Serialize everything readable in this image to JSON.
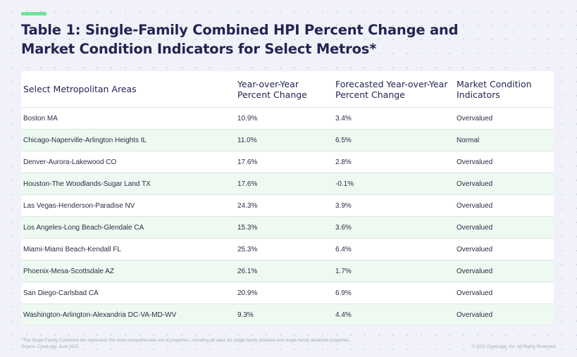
{
  "title": "Table 1: Single-Family Combined HPI Percent Change and Market Condition Indicators for Select Metros*",
  "colors": {
    "accent": "#6ee59b",
    "title": "#232552",
    "row_stripe": "#eefaf1",
    "background": "#f1f2f9"
  },
  "chart_data": {
    "type": "table",
    "title": "Table 1: Single-Family Combined HPI Percent Change and Market Condition Indicators for Select Metros*",
    "columns": [
      "Select Metropolitan Areas",
      "Year-over-Year Percent Change",
      "Forecasted Year-over-Year Percent Change",
      "Market Condition Indicators"
    ],
    "rows": [
      [
        "Boston MA",
        "10.9%",
        "3.4%",
        "Overvalued"
      ],
      [
        "Chicago-Naperville-Arlington Heights IL",
        "11.0%",
        "6.5%",
        "Normal"
      ],
      [
        "Denver-Aurora-Lakewood CO",
        "17.6%",
        "2.8%",
        "Overvalued"
      ],
      [
        "Houston-The Woodlands-Sugar Land TX",
        "17.6%",
        "-0.1%",
        "Overvalued"
      ],
      [
        "Las Vegas-Henderson-Paradise NV",
        "24.3%",
        "3.9%",
        "Overvalued"
      ],
      [
        "Los Angeles-Long Beach-Glendale CA",
        "15.3%",
        "3.6%",
        "Overvalued"
      ],
      [
        "Miami-Miami Beach-Kendall FL",
        "25.3%",
        "6.4%",
        "Overvalued"
      ],
      [
        "Phoenix-Mesa-Scottsdale AZ",
        "26.1%",
        "1.7%",
        "Overvalued"
      ],
      [
        "San Diego-Carlsbad CA",
        "20.9%",
        "6.9%",
        "Overvalued"
      ],
      [
        "Washington-Arlington-Alexandria DC-VA-MD-WV",
        "9.3%",
        "4.4%",
        "Overvalued"
      ]
    ]
  },
  "footer": {
    "note": "*The Single-Family Combined tier represents the most comprehensive set of properties, including all sales for single-family attached and single-family detached properties.",
    "source": "Source: CoreLogic June 2022",
    "copyright": "© 2022 CoreLogic, Inc. All Rights Reserved."
  }
}
